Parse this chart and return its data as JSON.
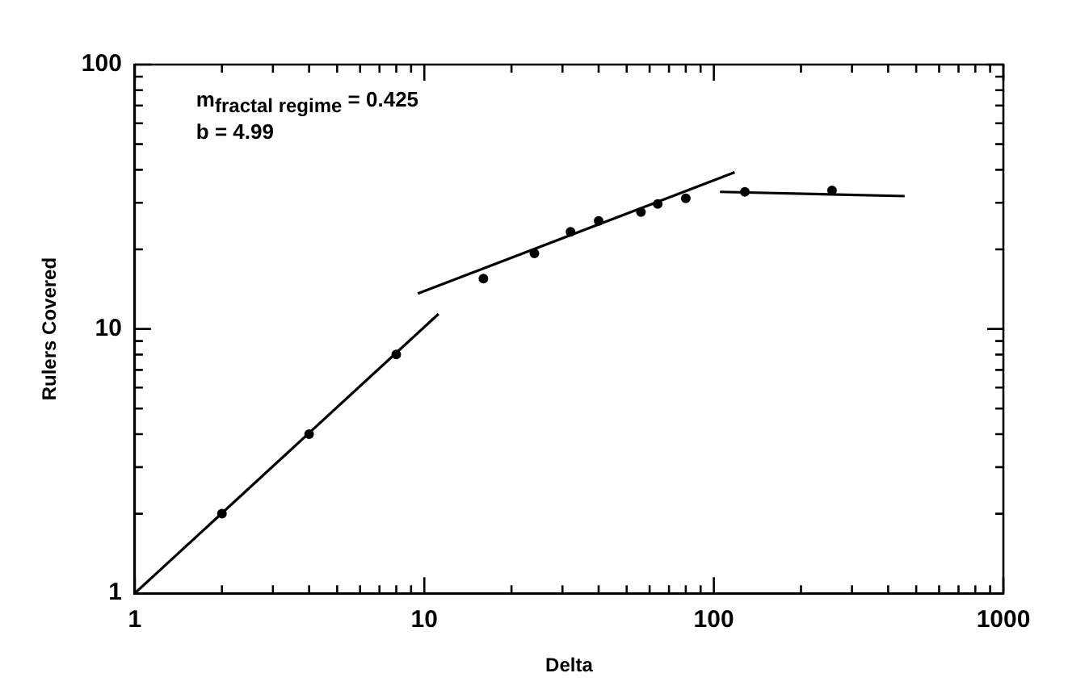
{
  "chart_data": {
    "type": "scatter",
    "xlabel": "Delta",
    "ylabel": "Rulers Covered",
    "log": "xy",
    "grid": false,
    "legend": false,
    "marker": "circle",
    "xlim": [
      1,
      1000
    ],
    "ylim": [
      1,
      100
    ],
    "xticks": [
      1,
      {
        "value": 2,
        "label": null
      },
      {
        "value": 3,
        "label": null
      },
      {
        "value": 4,
        "label": null
      },
      {
        "value": 5,
        "label": null
      },
      {
        "value": 6,
        "label": null
      },
      {
        "value": 7,
        "label": null
      },
      {
        "value": 8,
        "label": null
      },
      {
        "value": 9,
        "label": null
      },
      10,
      {
        "value": 20,
        "label": null
      },
      {
        "value": 30,
        "label": null
      },
      {
        "value": 40,
        "label": null
      },
      {
        "value": 50,
        "label": null
      },
      {
        "value": 60,
        "label": null
      },
      {
        "value": 70,
        "label": null
      },
      {
        "value": 80,
        "label": null
      },
      {
        "value": 90,
        "label": null
      },
      100,
      {
        "value": 200,
        "label": null
      },
      {
        "value": 300,
        "label": null
      },
      {
        "value": 400,
        "label": null
      },
      {
        "value": 500,
        "label": null
      },
      {
        "value": 600,
        "label": null
      },
      {
        "value": 700,
        "label": null
      },
      {
        "value": 800,
        "label": null
      },
      {
        "value": 900,
        "label": null
      },
      1000
    ],
    "yticks": [
      1,
      {
        "value": 2,
        "label": null
      },
      {
        "value": 3,
        "label": null
      },
      {
        "value": 4,
        "label": null
      },
      {
        "value": 5,
        "label": null
      },
      {
        "value": 6,
        "label": null
      },
      {
        "value": 7,
        "label": null
      },
      {
        "value": 8,
        "label": null
      },
      {
        "value": 9,
        "label": null
      },
      10,
      {
        "value": 20,
        "label": null
      },
      {
        "value": 30,
        "label": null
      },
      {
        "value": 40,
        "label": null
      },
      {
        "value": 50,
        "label": null
      },
      {
        "value": 60,
        "label": null
      },
      {
        "value": 70,
        "label": null
      },
      {
        "value": 80,
        "label": null
      },
      {
        "value": 90,
        "label": null
      },
      100
    ],
    "series": [
      {
        "color": "#000000",
        "x": [
          2,
          4,
          8,
          16,
          24,
          32,
          40,
          56,
          64,
          80,
          128,
          256
        ],
        "values": [
          2,
          4,
          8,
          15.5,
          19.3,
          23.3,
          25.6,
          27.7,
          29.7,
          31.2,
          33,
          33.4
        ]
      },
      {
        "type": "line",
        "color": "#000000",
        "marker": "none",
        "x": [
          1,
          11.2
        ],
        "values": [
          1,
          11.4
        ]
      },
      {
        "type": "line",
        "color": "#000000",
        "marker": "none",
        "x": [
          9.5,
          118
        ],
        "values": [
          13.6,
          39.1
        ]
      },
      {
        "type": "line",
        "color": "#000000",
        "marker": "none",
        "x": [
          105,
          456
        ],
        "values": [
          33,
          31.8
        ]
      }
    ],
    "annotations": [
      "m$_{fractal regime}$ = 0.425",
      "b = 4.99"
    ]
  }
}
